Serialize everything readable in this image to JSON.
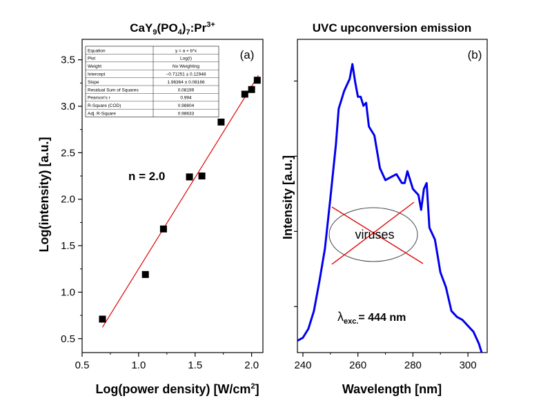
{
  "chart_data": [
    {
      "type": "scatter",
      "title": "CaY9(PO4)7:Pr3+",
      "title_parts": {
        "base1": "CaY",
        "sub1": "9",
        "base2": "(PO",
        "sub2": "4",
        "base3": ")",
        "sub3": "7",
        "base4": ":Pr",
        "sup": "3+"
      },
      "panel_label": "(a)",
      "xlabel": "Log(power density) [W/cm2]",
      "xlabel_parts": {
        "main": "Log(power density) [W/cm",
        "sup": "2",
        "end": "]"
      },
      "ylabel": "Log(intensity) [a.u.]",
      "xlim": [
        0.5,
        2.1
      ],
      "ylim": [
        0.35,
        3.72
      ],
      "xticks": [
        0.5,
        1.0,
        1.5,
        2.0
      ],
      "xtick_labels": [
        "0.5",
        "1.0",
        "1.5",
        "2.0"
      ],
      "yticks": [
        0.5,
        1.0,
        1.5,
        2.0,
        2.5,
        3.0,
        3.5
      ],
      "ytick_labels": [
        "0.5",
        "1.0",
        "1.5",
        "2.0",
        "2.5",
        "3.0",
        "3.5"
      ],
      "points": [
        {
          "x": 0.68,
          "y": 0.71
        },
        {
          "x": 1.06,
          "y": 1.19
        },
        {
          "x": 1.22,
          "y": 1.68
        },
        {
          "x": 1.45,
          "y": 2.24
        },
        {
          "x": 1.56,
          "y": 2.25
        },
        {
          "x": 1.73,
          "y": 2.83
        },
        {
          "x": 1.94,
          "y": 3.13
        },
        {
          "x": 2.0,
          "y": 3.18
        },
        {
          "x": 2.05,
          "y": 3.28
        }
      ],
      "fit": {
        "intercept": -0.71251,
        "slope": 1.96364,
        "x_range": [
          0.68,
          2.06
        ],
        "color": "#e00000"
      },
      "annotation": "n = 2.0",
      "fit_table": [
        [
          "Equation",
          "y = a + b*x"
        ],
        [
          "Plot",
          "Log(I)"
        ],
        [
          "Weight",
          "No Weighting"
        ],
        [
          "Intercept",
          "−0.71251 ± 0.12948"
        ],
        [
          "Slope",
          "1.96364 ± 0.08166"
        ],
        [
          "Residual Sum of Squares",
          "0.08199"
        ],
        [
          "Pearson's r",
          "0.994"
        ],
        [
          "R-Square (COD)",
          "0.98804"
        ],
        [
          "Adj. R-Square",
          "0.98633"
        ]
      ]
    },
    {
      "type": "line",
      "title": "UVC upconversion emission",
      "panel_label": "(b)",
      "xlabel": "Wavelength [nm]",
      "ylabel": "Intensity [a.u.]",
      "xlim": [
        238,
        307
      ],
      "xticks": [
        240,
        260,
        280,
        300
      ],
      "xtick_labels": [
        "240",
        "260",
        "280",
        "300"
      ],
      "y_ticks_unlabeled": true,
      "line_color": "#0000ee",
      "series": [
        {
          "x": [
            238,
            240,
            242,
            244,
            246,
            248,
            250,
            252,
            253,
            254,
            255,
            256,
            257,
            258,
            259,
            260,
            261,
            262,
            263,
            264,
            266,
            268,
            270,
            272,
            274,
            276,
            277,
            278,
            280,
            282,
            283,
            284,
            285,
            286,
            288,
            290,
            292,
            294,
            296,
            298,
            300,
            302,
            304,
            305
          ],
          "y": [
            0.04,
            0.05,
            0.08,
            0.14,
            0.24,
            0.35,
            0.52,
            0.7,
            0.82,
            0.85,
            0.88,
            0.9,
            0.92,
            0.97,
            0.91,
            0.86,
            0.86,
            0.83,
            0.84,
            0.76,
            0.73,
            0.62,
            0.58,
            0.59,
            0.6,
            0.57,
            0.57,
            0.61,
            0.55,
            0.53,
            0.48,
            0.55,
            0.57,
            0.42,
            0.38,
            0.27,
            0.22,
            0.14,
            0.12,
            0.11,
            0.09,
            0.07,
            0.03,
            0.0
          ]
        }
      ],
      "inset_text": "viruses",
      "annotation_parts": {
        "lambda": "λ",
        "sub": "exc.",
        "value": "= 444 nm"
      }
    }
  ]
}
